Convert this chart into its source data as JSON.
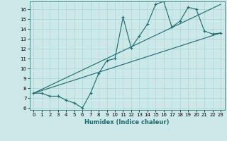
{
  "xlabel": "Humidex (Indice chaleur)",
  "background_color": "#cce8e8",
  "line_color": "#1a6b6b",
  "grid_color": "#aad4d4",
  "xlim": [
    -0.5,
    23.5
  ],
  "ylim": [
    5.8,
    16.8
  ],
  "xticks": [
    0,
    1,
    2,
    3,
    4,
    5,
    6,
    7,
    8,
    9,
    10,
    11,
    12,
    13,
    14,
    15,
    16,
    17,
    18,
    19,
    20,
    21,
    22,
    23
  ],
  "yticks": [
    6,
    7,
    8,
    9,
    10,
    11,
    12,
    13,
    14,
    15,
    16
  ],
  "series1_x": [
    0,
    1,
    2,
    3,
    4,
    5,
    6,
    7,
    8,
    9,
    10,
    11,
    12,
    13,
    14,
    15,
    16,
    17,
    18,
    19,
    20,
    21,
    22,
    23
  ],
  "series1_y": [
    7.5,
    7.5,
    7.2,
    7.2,
    6.8,
    6.5,
    6.0,
    7.5,
    9.5,
    10.8,
    11.0,
    15.2,
    12.1,
    13.3,
    14.5,
    16.5,
    16.8,
    14.2,
    14.8,
    16.2,
    16.0,
    13.8,
    13.5,
    13.6
  ],
  "series2_x": [
    0,
    23
  ],
  "series2_y": [
    7.5,
    16.5
  ],
  "series3_x": [
    0,
    23
  ],
  "series3_y": [
    7.5,
    13.6
  ],
  "xlabel_fontsize": 6,
  "tick_fontsize": 5
}
